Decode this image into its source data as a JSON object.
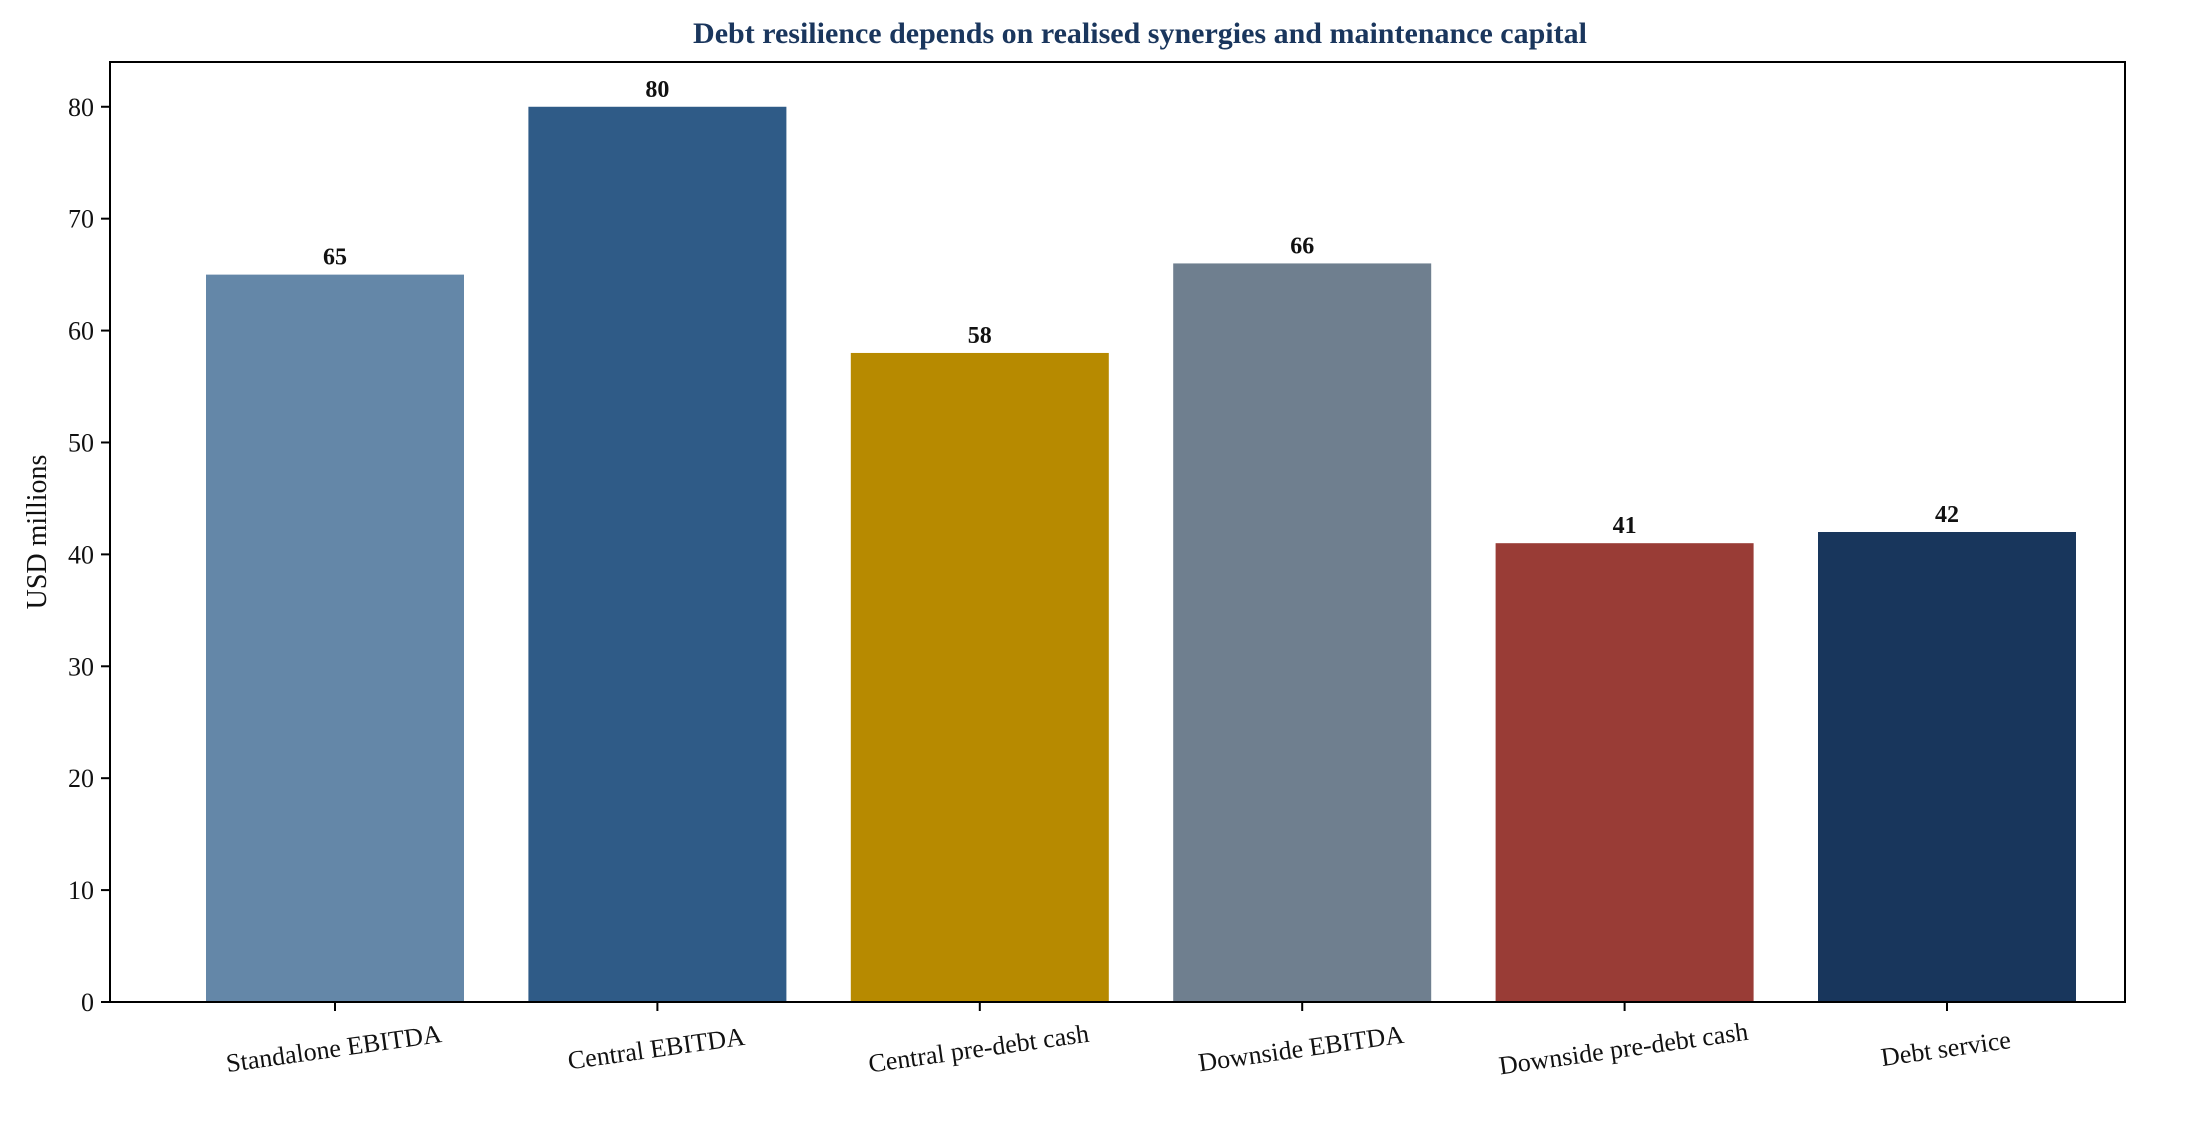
{
  "chart_data": {
    "type": "bar",
    "title": "Debt resilience depends on realised synergies and maintenance capital",
    "xlabel": "",
    "ylabel": "USD millions",
    "ylim": [
      0,
      84
    ],
    "yticks": [
      0,
      10,
      20,
      30,
      40,
      50,
      60,
      70,
      80
    ],
    "grid": false,
    "categories": [
      "Standalone EBITDA",
      "Central EBITDA",
      "Central pre-debt cash",
      "Downside EBITDA",
      "Downside pre-debt cash",
      "Debt service"
    ],
    "values": [
      65,
      80,
      58,
      66,
      41,
      42
    ],
    "data_labels": [
      "65",
      "80",
      "58",
      "66",
      "41",
      "42"
    ],
    "colors": [
      "#6487a8",
      "#2f5b87",
      "#b78a00",
      "#6f7f8f",
      "#993c36",
      "#18365c"
    ]
  }
}
